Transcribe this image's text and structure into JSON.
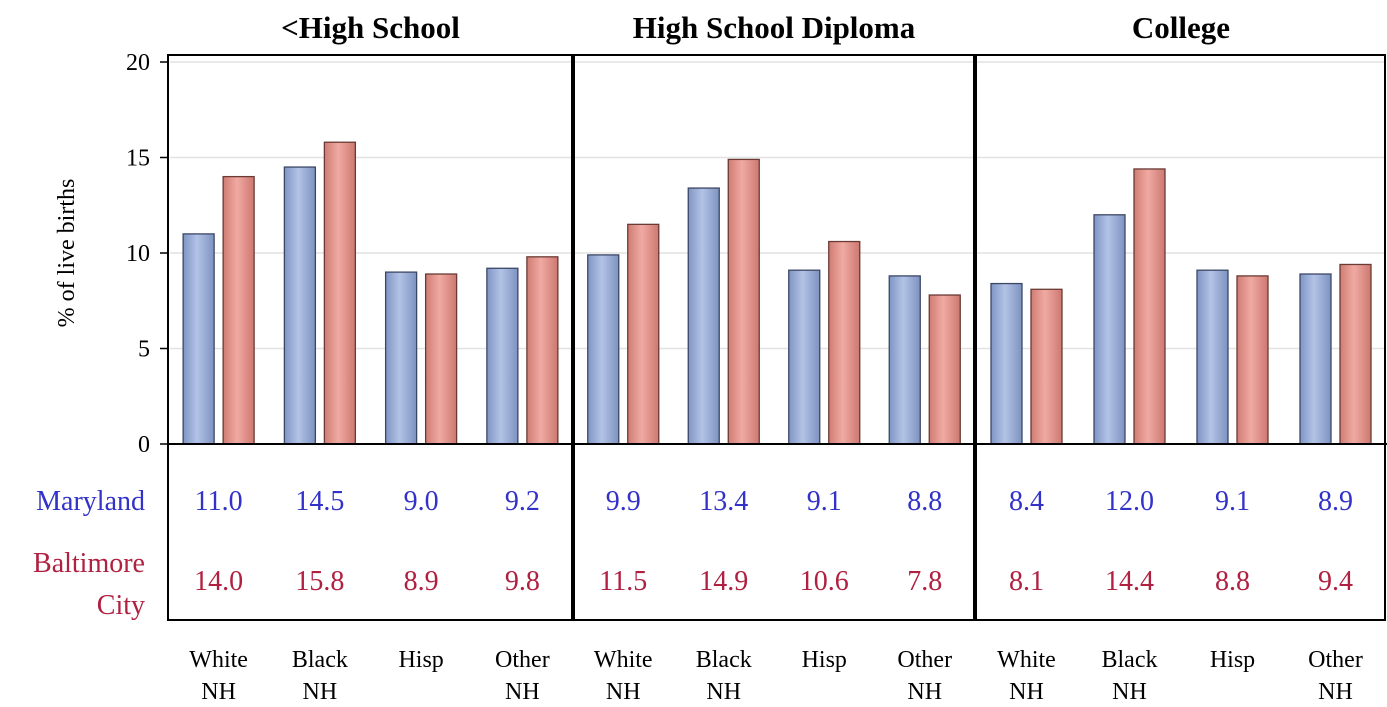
{
  "chart_data": {
    "type": "bar",
    "ylabel": "% of live births",
    "ylim": [
      0,
      20
    ],
    "yticks": [
      0,
      5,
      10,
      15,
      20
    ],
    "grid": true,
    "categories": [
      [
        "White",
        "NH"
      ],
      [
        "Black",
        "NH"
      ],
      [
        "Hisp",
        ""
      ],
      [
        "Other",
        "NH"
      ]
    ],
    "series_names": [
      "Maryland",
      "Baltimore City"
    ],
    "row_labels": [
      "Maryland",
      "Baltimore",
      "City"
    ],
    "colors": {
      "Maryland": "#9aaed6",
      "Baltimore City": "#e0928a",
      "Maryland_text": "#3232c8",
      "Baltimore City_text": "#b02040"
    },
    "panels": [
      {
        "title": "<High School",
        "series": [
          {
            "name": "Maryland",
            "values": [
              11.0,
              14.5,
              9.0,
              9.2
            ]
          },
          {
            "name": "Baltimore City",
            "values": [
              14.0,
              15.8,
              8.9,
              9.8
            ]
          }
        ]
      },
      {
        "title": "High School Diploma",
        "series": [
          {
            "name": "Maryland",
            "values": [
              9.9,
              13.4,
              9.1,
              8.8
            ]
          },
          {
            "name": "Baltimore City",
            "values": [
              11.5,
              14.9,
              10.6,
              7.8
            ]
          }
        ]
      },
      {
        "title": "College",
        "series": [
          {
            "name": "Maryland",
            "values": [
              8.4,
              12.0,
              9.1,
              8.9
            ]
          },
          {
            "name": "Baltimore City",
            "values": [
              8.1,
              14.4,
              8.8,
              9.4
            ]
          }
        ]
      }
    ]
  }
}
